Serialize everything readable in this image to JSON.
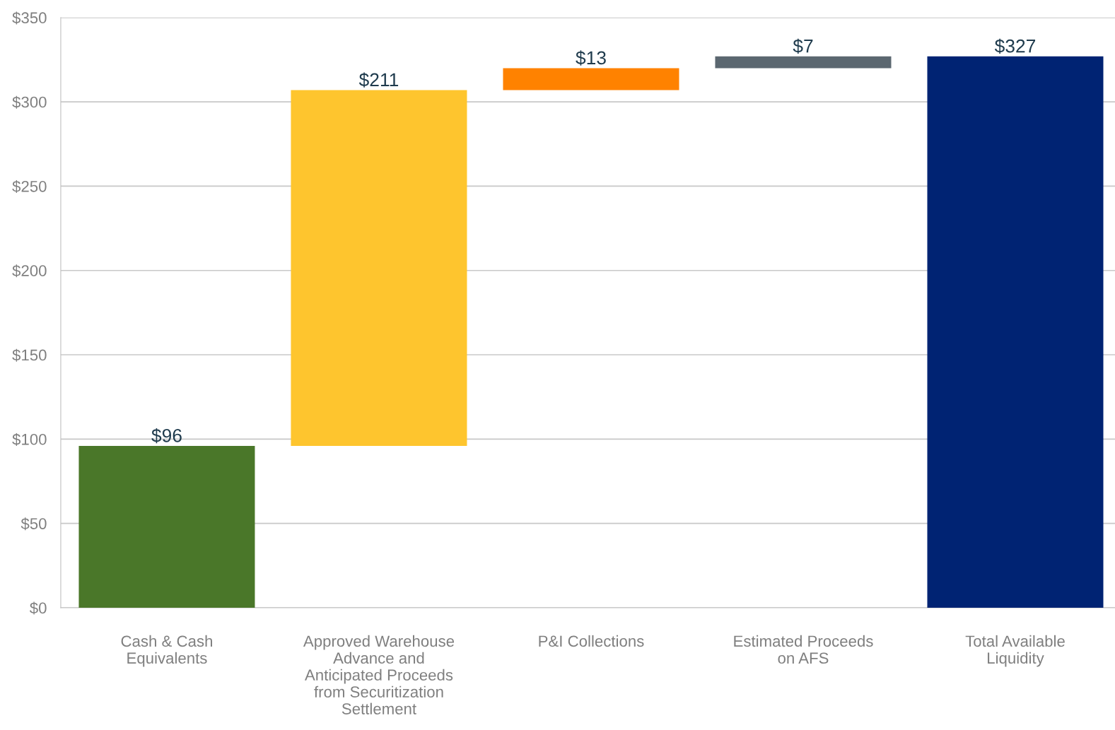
{
  "chart_data": {
    "type": "bar",
    "categories": [
      "Cash & Cash\nEquivalents",
      "Approved Warehouse\nAdvance and\nAnticipated Proceeds\nfrom Securitization\nSettlement",
      "P&I Collections",
      "Estimated Proceeds\non AFS",
      "Total Available\nLiquidity"
    ],
    "values": [
      96,
      211,
      13,
      7,
      327
    ],
    "base": [
      0,
      96,
      307,
      320,
      0
    ],
    "colors": [
      "#4a7729",
      "#fec52e",
      "#ff8200",
      "#5b6770",
      "#002373"
    ],
    "value_labels": [
      "$96",
      "$211",
      "$13",
      "$7",
      "$327"
    ],
    "ylim": [
      0,
      350
    ],
    "yticks": [
      {
        "value": 0,
        "label": "$0"
      },
      {
        "value": 50,
        "label": "$50"
      },
      {
        "value": 100,
        "label": "$100"
      },
      {
        "value": 150,
        "label": "$150"
      },
      {
        "value": 200,
        "label": "$200"
      },
      {
        "value": 250,
        "label": "$250"
      },
      {
        "value": 300,
        "label": "$300"
      },
      {
        "value": 350,
        "label": "$350"
      }
    ],
    "grid": "y"
  }
}
